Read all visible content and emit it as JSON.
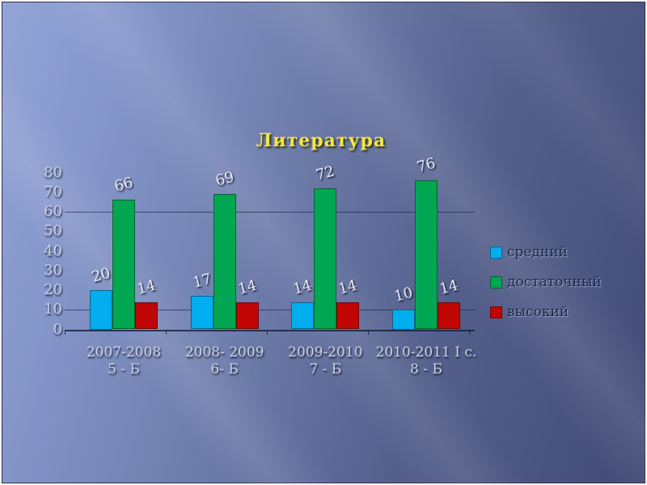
{
  "chart_data": {
    "type": "bar",
    "title": "Литература",
    "categories": [
      {
        "line1": "2007-2008",
        "line2": "5 - Б"
      },
      {
        "line1": "2008- 2009",
        "line2": "6- Б"
      },
      {
        "line1": "2009-2010",
        "line2": "7 - Б"
      },
      {
        "line1": "2010-2011 I с.",
        "line2": "8 - Б"
      }
    ],
    "series": [
      {
        "name": "средний",
        "color": "#00aeef",
        "values": [
          20,
          17,
          14,
          10
        ]
      },
      {
        "name": "достаточный",
        "color": "#00a651",
        "values": [
          66,
          69,
          72,
          76
        ]
      },
      {
        "name": "высокий",
        "color": "#c00505",
        "values": [
          14,
          14,
          14,
          14
        ]
      }
    ],
    "ylim": [
      0,
      80
    ],
    "yticks": [
      0,
      10,
      20,
      30,
      40,
      50,
      60,
      70,
      80
    ],
    "gridlines_at": [
      10,
      60
    ],
    "grid": "partial",
    "legend_position": "right",
    "xlabel": "",
    "ylabel": ""
  }
}
